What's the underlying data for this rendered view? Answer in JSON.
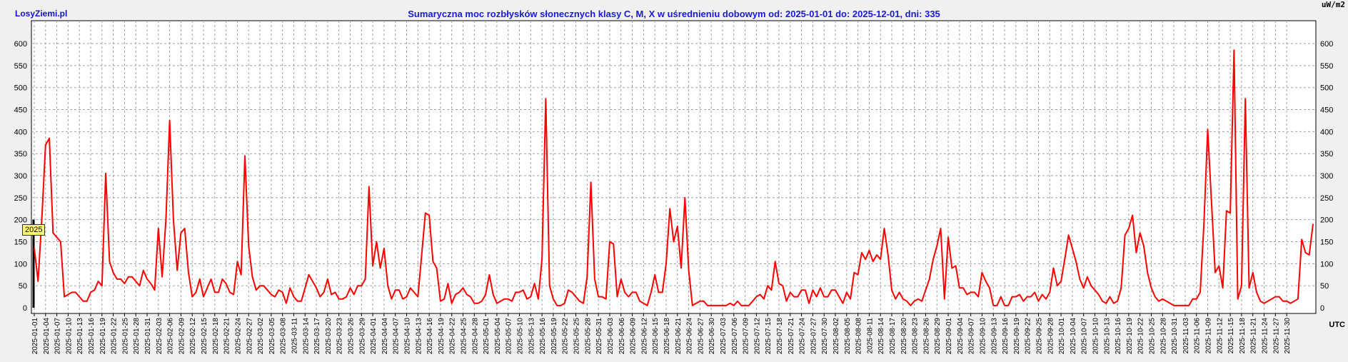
{
  "header": {
    "brand": "LosyZiemi.pl",
    "title": "Sumaryczna moc rozbłysków słonecznych klasy C, M, X w uśrednieniu dobowym od: 2025-01-01 do: 2025-12-01, dni: 335",
    "unit_top": "uW/m2",
    "unit_bottom": "UTC",
    "year_tag": "2025"
  },
  "colors": {
    "series": "#ff0000",
    "title": "#1a1ad6",
    "background": "#f0f0f0",
    "plot_background": "#ffffff",
    "grid": "#a0a0a0"
  },
  "chart_data": {
    "type": "line",
    "title": "Sumaryczna moc rozbłysków słonecznych klasy C, M, X w uśrednieniu dobowym od: 2025-01-01 do: 2025-12-01, dni: 335",
    "xlabel": "UTC",
    "ylabel": "uW/m2",
    "ylim": [
      0,
      630
    ],
    "yticks": [
      0,
      50,
      100,
      150,
      200,
      250,
      300,
      350,
      400,
      450,
      500,
      550,
      600
    ],
    "grid": true,
    "x_start": "2025-01-01",
    "x_end": "2025-12-01",
    "xtick_labels": [
      "2025-01-01",
      "2025-01-04",
      "2025-01-07",
      "2025-01-10",
      "2025-01-13",
      "2025-01-16",
      "2025-01-19",
      "2025-01-22",
      "2025-01-25",
      "2025-01-28",
      "2025-01-31",
      "2025-02-03",
      "2025-02-06",
      "2025-02-09",
      "2025-02-12",
      "2025-02-15",
      "2025-02-18",
      "2025-02-21",
      "2025-02-24",
      "2025-02-27",
      "2025-03-02",
      "2025-03-05",
      "2025-03-08",
      "2025-03-11",
      "2025-03-14",
      "2025-03-17",
      "2025-03-20",
      "2025-03-23",
      "2025-03-26",
      "2025-03-29",
      "2025-04-01",
      "2025-04-04",
      "2025-04-07",
      "2025-04-10",
      "2025-04-13",
      "2025-04-16",
      "2025-04-19",
      "2025-04-22",
      "2025-04-25",
      "2025-04-28",
      "2025-05-01",
      "2025-05-04",
      "2025-05-07",
      "2025-05-10",
      "2025-05-13",
      "2025-05-16",
      "2025-05-19",
      "2025-05-22",
      "2025-05-25",
      "2025-05-28",
      "2025-05-31",
      "2025-06-03",
      "2025-06-06",
      "2025-06-09",
      "2025-06-12",
      "2025-06-15",
      "2025-06-18",
      "2025-06-21",
      "2025-06-24",
      "2025-06-27",
      "2025-06-30",
      "2025-07-03",
      "2025-07-06",
      "2025-07-09",
      "2025-07-12",
      "2025-07-15",
      "2025-07-18",
      "2025-07-21",
      "2025-07-24",
      "2025-07-27",
      "2025-07-30",
      "2025-08-02",
      "2025-08-05",
      "2025-08-08",
      "2025-08-11",
      "2025-08-14",
      "2025-08-17",
      "2025-08-20",
      "2025-08-23",
      "2025-08-26",
      "2025-08-29",
      "2025-09-01",
      "2025-09-04",
      "2025-09-07",
      "2025-09-10",
      "2025-09-13",
      "2025-09-16",
      "2025-09-19",
      "2025-09-22",
      "2025-09-25",
      "2025-09-28",
      "2025-10-01",
      "2025-10-04",
      "2025-10-07",
      "2025-10-10",
      "2025-10-13",
      "2025-10-16",
      "2025-10-19",
      "2025-10-22",
      "2025-10-25",
      "2025-10-28",
      "2025-10-31",
      "2025-11-03",
      "2025-11-06",
      "2025-11-09",
      "2025-11-12",
      "2025-11-15",
      "2025-11-18",
      "2025-11-21",
      "2025-11-24",
      "2025-11-27",
      "2025-11-30"
    ],
    "series": [
      {
        "values": [
          135,
          60,
          200,
          370,
          385,
          170,
          160,
          150,
          25,
          30,
          35,
          35,
          25,
          15,
          15,
          35,
          40,
          60,
          50,
          305,
          105,
          80,
          65,
          65,
          55,
          70,
          70,
          60,
          50,
          85,
          65,
          55,
          40,
          180,
          70,
          200,
          425,
          200,
          85,
          170,
          180,
          80,
          25,
          35,
          65,
          25,
          45,
          65,
          35,
          35,
          65,
          55,
          35,
          30,
          105,
          75,
          345,
          140,
          70,
          40,
          50,
          50,
          40,
          30,
          25,
          40,
          35,
          10,
          45,
          25,
          15,
          15,
          45,
          75,
          60,
          45,
          25,
          35,
          65,
          30,
          35,
          20,
          20,
          25,
          45,
          30,
          50,
          50,
          65,
          275,
          95,
          150,
          90,
          135,
          50,
          20,
          40,
          40,
          20,
          25,
          45,
          35,
          25,
          120,
          215,
          210,
          105,
          90,
          15,
          20,
          55,
          10,
          30,
          35,
          45,
          30,
          25,
          10,
          10,
          15,
          30,
          75,
          30,
          10,
          15,
          20,
          20,
          15,
          35,
          35,
          40,
          20,
          25,
          55,
          20,
          110,
          475,
          50,
          20,
          5,
          5,
          10,
          40,
          35,
          25,
          15,
          10,
          70,
          285,
          65,
          25,
          25,
          20,
          150,
          145,
          25,
          65,
          35,
          25,
          35,
          35,
          15,
          10,
          5,
          35,
          75,
          35,
          35,
          100,
          225,
          150,
          185,
          90,
          250,
          85,
          5,
          10,
          15,
          15,
          5,
          5,
          5,
          5,
          5,
          5,
          10,
          5,
          15,
          5,
          5,
          5,
          15,
          25,
          30,
          20,
          50,
          40,
          105,
          55,
          50,
          15,
          35,
          25,
          25,
          40,
          40,
          10,
          40,
          25,
          45,
          25,
          25,
          40,
          40,
          25,
          10,
          35,
          20,
          80,
          75,
          125,
          110,
          130,
          105,
          120,
          110,
          180,
          120,
          40,
          20,
          35,
          20,
          15,
          5,
          15,
          20,
          15,
          40,
          65,
          110,
          140,
          180,
          20,
          160,
          90,
          95,
          45,
          45,
          30,
          35,
          35,
          25,
          80,
          60,
          45,
          5,
          5,
          25,
          5,
          5,
          25,
          25,
          30,
          15,
          25,
          25,
          35,
          15,
          30,
          20,
          35,
          90,
          50,
          60,
          110,
          165,
          135,
          105,
          65,
          45,
          70,
          50,
          40,
          30,
          15,
          10,
          25,
          10,
          15,
          45,
          165,
          180,
          210,
          125,
          170,
          140,
          80,
          45,
          25,
          15,
          20,
          15,
          10,
          5,
          5,
          5,
          5,
          5,
          20,
          20,
          35,
          190,
          405,
          240,
          80,
          95,
          45,
          220,
          215,
          585,
          20,
          50,
          475,
          45,
          80,
          35,
          15,
          10,
          15,
          20,
          25,
          25,
          15,
          15,
          10,
          15,
          20,
          155,
          125,
          120,
          190
        ]
      }
    ]
  }
}
